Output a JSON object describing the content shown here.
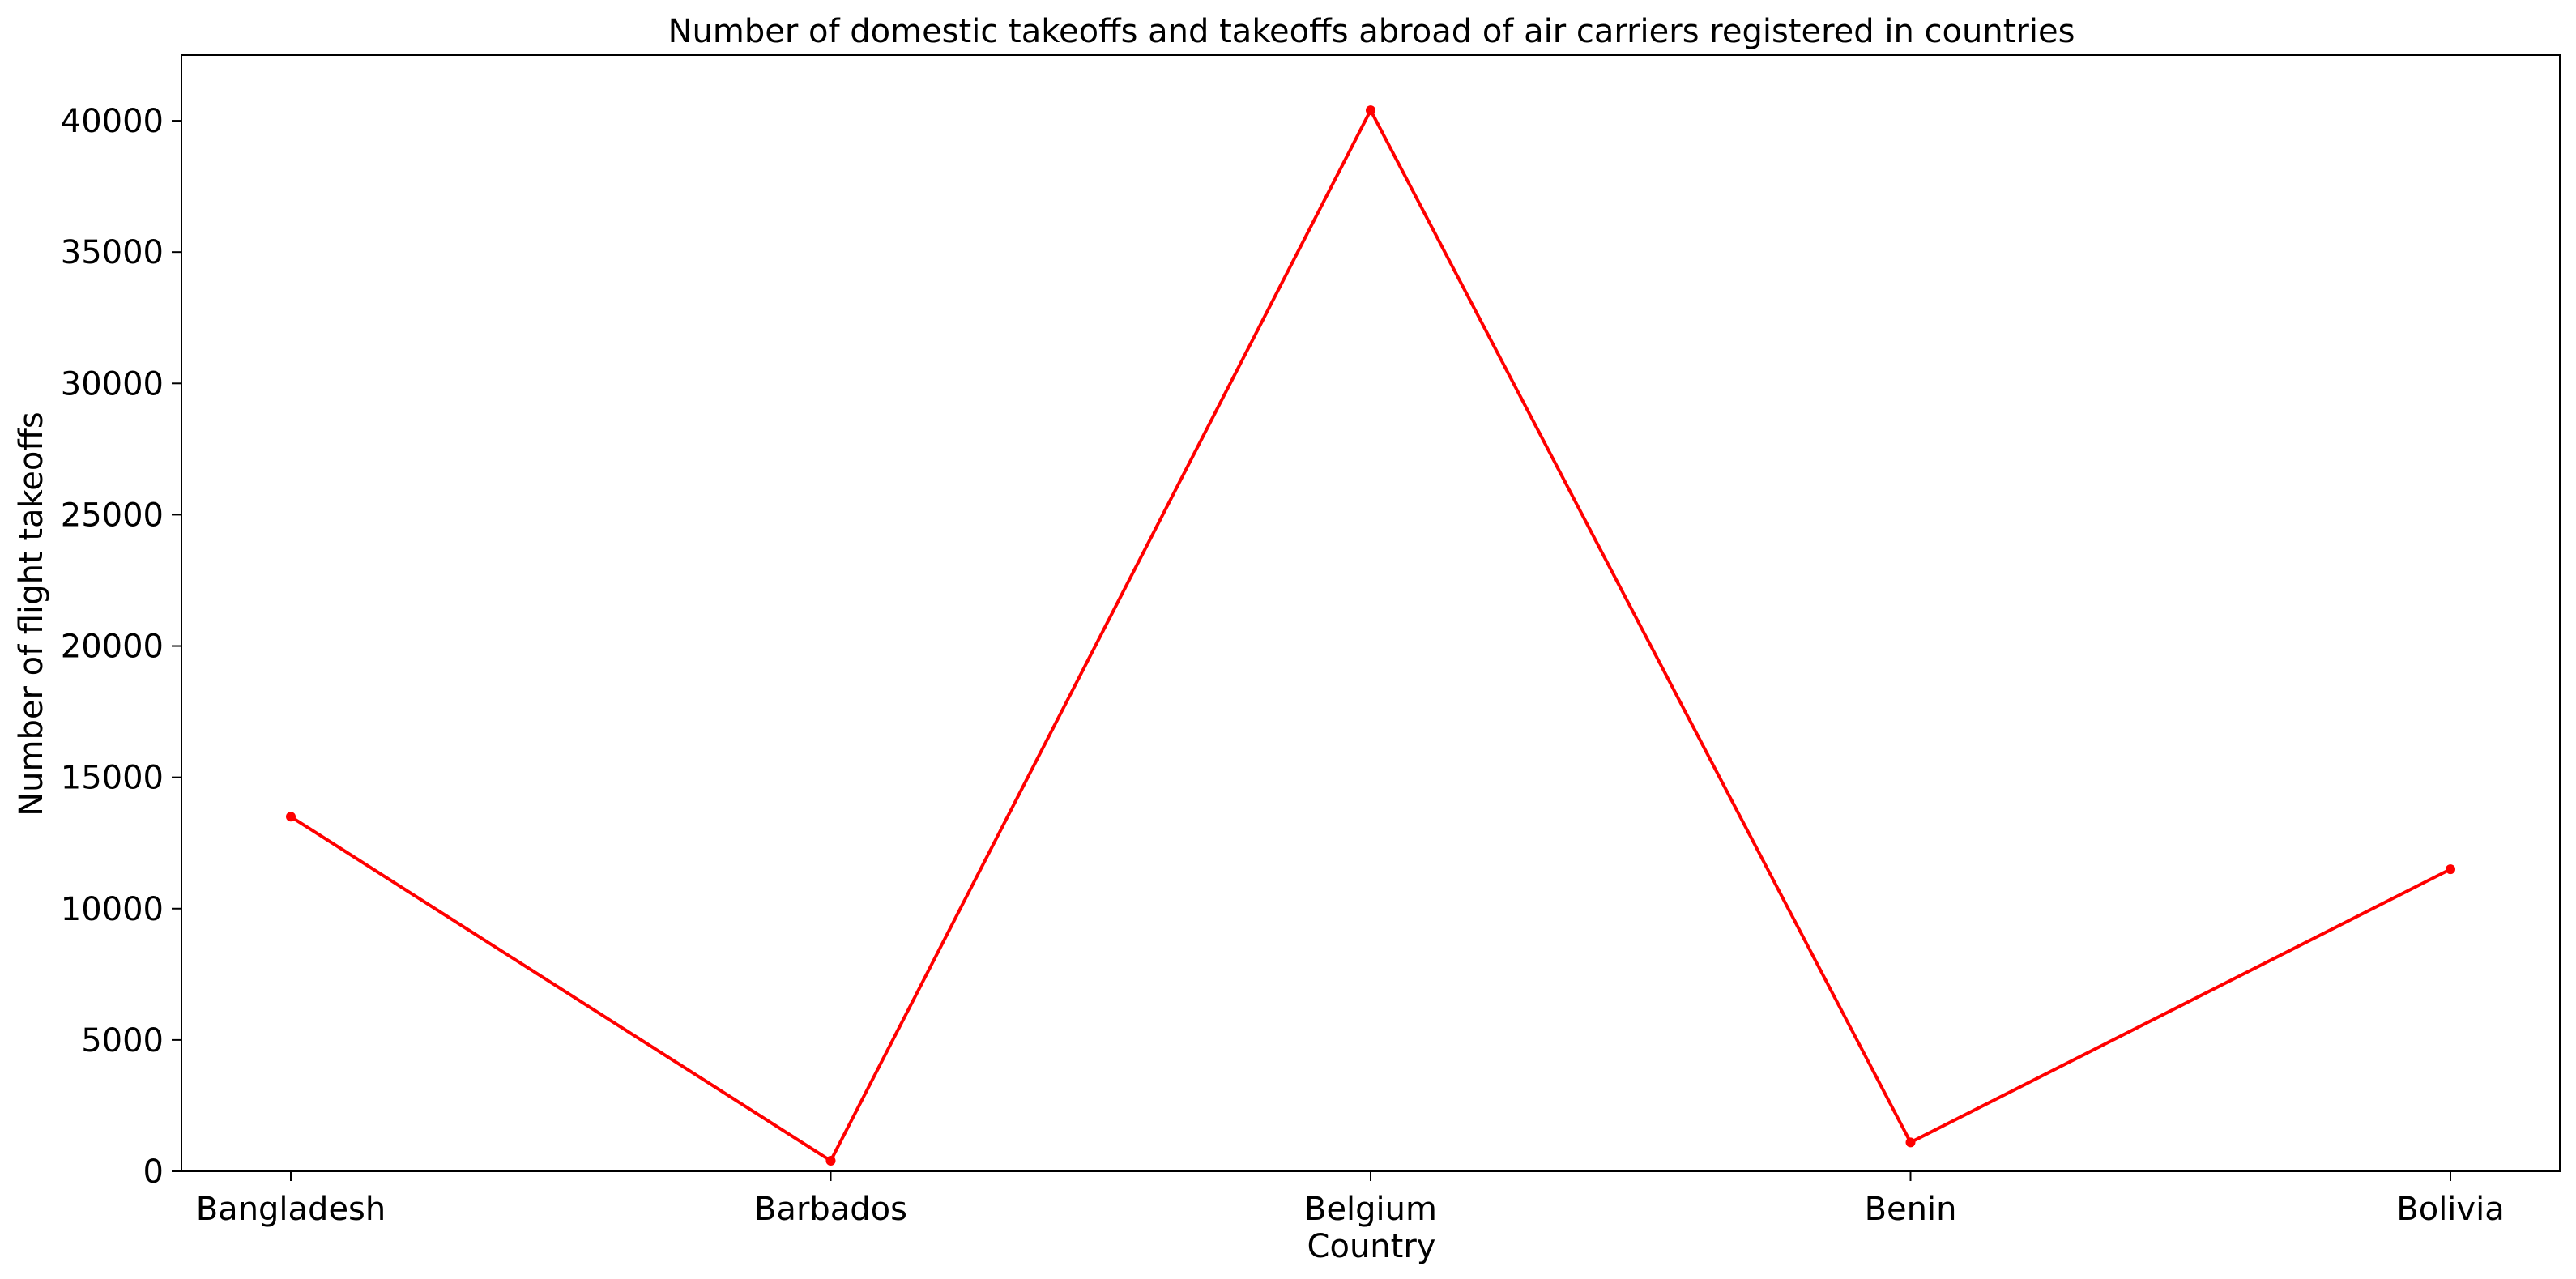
{
  "chart_data": {
    "type": "line",
    "title": "Number of domestic takeoffs and takeoffs abroad of air carriers registered in countries",
    "xlabel": "Country",
    "ylabel": "Number of flight takeoffs",
    "categories": [
      "Bangladesh",
      "Barbados",
      "Belgium",
      "Benin",
      "Bolivia"
    ],
    "series": [
      {
        "values": [
          13500,
          400,
          40400,
          1100,
          11500
        ],
        "color": "#ff0000",
        "marker": "circle"
      }
    ],
    "ylim": [
      0,
      42500
    ],
    "yticks": [
      0,
      5000,
      10000,
      15000,
      20000,
      25000,
      30000,
      35000,
      40000
    ],
    "grid": false,
    "legend": "none"
  }
}
